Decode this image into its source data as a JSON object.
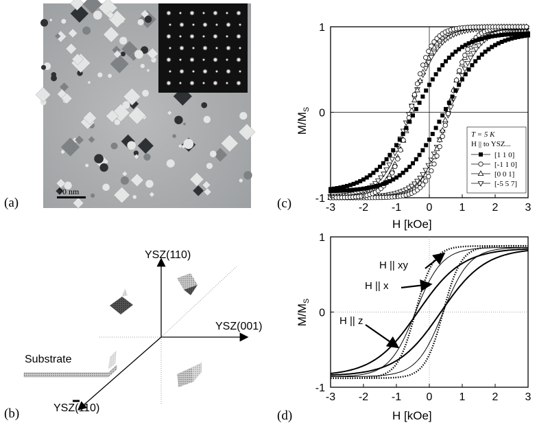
{
  "panels": {
    "a": {
      "label": "(a)",
      "scale_bar": "70 nm"
    },
    "b": {
      "label": "(b)",
      "axes": {
        "up": "YSZ(110)",
        "right": "YSZ(001)",
        "down": "YSZ(110)"
      },
      "substrate": "Substrate"
    },
    "c": {
      "label": "(c)"
    },
    "d": {
      "label": "(d)"
    }
  },
  "chart_data": [
    {
      "id": "c",
      "type": "line",
      "xlabel": "H [kOe]",
      "ylabel": "M/M",
      "ylabel_sub": "S",
      "xlim": [
        -3,
        3
      ],
      "ylim": [
        -1,
        1
      ],
      "xticks": [
        "-3",
        "-2",
        "-1",
        "0",
        "1",
        "2",
        "3"
      ],
      "yticks": [
        "1",
        "0",
        "-1"
      ],
      "legend_title": [
        "T = 5 K",
        "H || to YSZ..."
      ],
      "legend_position": "bottom-right",
      "series": [
        {
          "name": "[1 1 0]",
          "marker": "square-filled",
          "Hc": 0.45,
          "w": 1.25,
          "Ms": 0.93,
          "upper": [
            [
              -3,
              -0.88
            ],
            [
              -2,
              -0.68
            ],
            [
              -1,
              -0.37
            ],
            [
              0,
              0.24
            ],
            [
              1,
              0.62
            ],
            [
              2,
              0.83
            ],
            [
              3,
              0.93
            ]
          ],
          "lower": [
            [
              -3,
              -0.93
            ],
            [
              -2,
              -0.83
            ],
            [
              -1,
              -0.62
            ],
            [
              0,
              -0.24
            ],
            [
              1,
              0.37
            ],
            [
              2,
              0.68
            ],
            [
              3,
              0.88
            ]
          ]
        },
        {
          "name": "[-1 1 0]",
          "marker": "circle-open",
          "Hc": 0.58,
          "w": 0.62,
          "Ms": 1.0,
          "upper": [
            [
              -3,
              -0.99
            ],
            [
              -2,
              -0.93
            ],
            [
              -1,
              -0.58
            ],
            [
              0,
              0.67
            ],
            [
              1,
              0.96
            ],
            [
              2,
              0.99
            ],
            [
              3,
              1.0
            ]
          ],
          "lower": [
            [
              -3,
              -1.0
            ],
            [
              -2,
              -0.99
            ],
            [
              -1,
              -0.96
            ],
            [
              0,
              -0.67
            ],
            [
              1,
              0.58
            ],
            [
              2,
              0.93
            ],
            [
              3,
              0.99
            ]
          ]
        },
        {
          "name": "[0 0 1]",
          "marker": "triangle-up-open",
          "Hc": 0.55,
          "w": 0.7,
          "Ms": 1.0,
          "upper": [
            [
              -3,
              -0.98
            ],
            [
              -2,
              -0.9
            ],
            [
              -1,
              -0.5
            ],
            [
              0,
              0.6
            ],
            [
              1,
              0.94
            ],
            [
              2,
              0.99
            ],
            [
              3,
              1.0
            ]
          ],
          "lower": [
            [
              -3,
              -1.0
            ],
            [
              -2,
              -0.99
            ],
            [
              -1,
              -0.94
            ],
            [
              0,
              -0.6
            ],
            [
              1,
              0.5
            ],
            [
              2,
              0.9
            ],
            [
              3,
              0.98
            ]
          ]
        },
        {
          "name": "[-5 5 7]",
          "marker": "triangle-down-open",
          "Hc": 0.6,
          "w": 0.85,
          "Ms": 0.99,
          "upper": [
            [
              -3,
              -0.95
            ],
            [
              -2,
              -0.84
            ],
            [
              -1,
              -0.4
            ],
            [
              0,
              0.57
            ],
            [
              1,
              0.88
            ],
            [
              2,
              0.96
            ],
            [
              3,
              0.98
            ]
          ],
          "lower": [
            [
              -3,
              -0.98
            ],
            [
              -2,
              -0.96
            ],
            [
              -1,
              -0.88
            ],
            [
              0,
              -0.57
            ],
            [
              1,
              0.4
            ],
            [
              2,
              0.84
            ],
            [
              3,
              0.95
            ]
          ]
        }
      ]
    },
    {
      "id": "d",
      "type": "line",
      "xlabel": "H [kOe]",
      "ylabel": "M/M",
      "ylabel_sub": "S",
      "xlim": [
        -3,
        3
      ],
      "ylim": [
        -1,
        1
      ],
      "xticks": [
        "-3",
        "-2",
        "-1",
        "0",
        "1",
        "2",
        "3"
      ],
      "yticks": [
        "1",
        "0",
        "-1"
      ],
      "annotations": [
        "H || xy",
        "H || x",
        "H || z"
      ],
      "series": [
        {
          "name": "H || xy",
          "style": "dotted",
          "Hc": 0.42,
          "w": 0.55,
          "Ms": 0.88,
          "upper": [
            [
              -3,
              -0.87
            ],
            [
              -1,
              -0.68
            ],
            [
              0,
              0.55
            ],
            [
              1,
              0.84
            ],
            [
              3,
              0.88
            ]
          ],
          "lower": [
            [
              -3,
              -0.88
            ],
            [
              -1,
              -0.84
            ],
            [
              0,
              -0.55
            ],
            [
              1,
              0.68
            ],
            [
              3,
              0.87
            ]
          ]
        },
        {
          "name": "H || x",
          "style": "thin",
          "Hc": 0.42,
          "w": 0.8,
          "Ms": 0.86,
          "upper": [
            [
              -3,
              -0.84
            ],
            [
              -1,
              -0.57
            ],
            [
              0,
              0.42
            ],
            [
              1,
              0.76
            ],
            [
              3,
              0.86
            ]
          ],
          "lower": [
            [
              -3,
              -0.86
            ],
            [
              -1,
              -0.76
            ],
            [
              0,
              -0.42
            ],
            [
              1,
              0.57
            ],
            [
              3,
              0.84
            ]
          ]
        },
        {
          "name": "H || z",
          "style": "thick",
          "Hc": 0.35,
          "w": 1.35,
          "Ms": 0.85,
          "upper": [
            [
              -3,
              -0.78
            ],
            [
              -1,
              -0.36
            ],
            [
              0,
              0.22
            ],
            [
              1,
              0.56
            ],
            [
              3,
              0.83
            ]
          ],
          "lower": [
            [
              -3,
              -0.83
            ],
            [
              -1,
              -0.56
            ],
            [
              0,
              -0.22
            ],
            [
              1,
              0.36
            ],
            [
              3,
              0.78
            ]
          ]
        }
      ]
    }
  ]
}
